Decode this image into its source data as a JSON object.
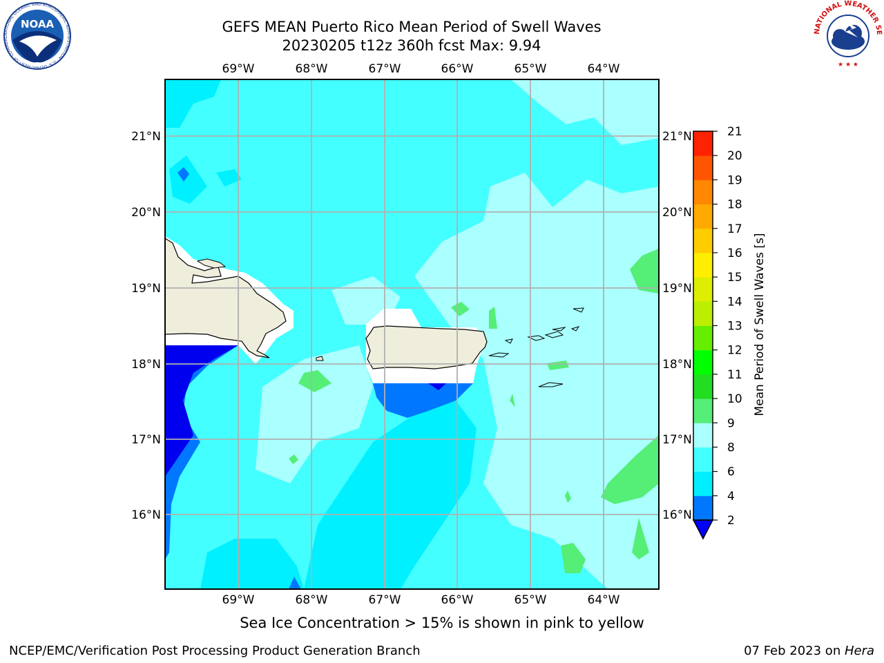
{
  "title_line1": "GEFS MEAN Puerto Rico Mean Period of Swell Waves",
  "title_line2": "20230205 t12z 360h fcst   Max: 9.94",
  "lon_labels": [
    "69°W",
    "68°W",
    "67°W",
    "66°W",
    "65°W",
    "64°W"
  ],
  "lat_labels": [
    "21°N",
    "20°N",
    "19°N",
    "18°N",
    "17°N",
    "16°N"
  ],
  "colorbar": {
    "label": "Mean Period of Swell Waves [s]",
    "ticks": [
      "2",
      "4",
      "6",
      "8",
      "9",
      "10",
      "11",
      "12",
      "13",
      "14",
      "15",
      "16",
      "17",
      "18",
      "19",
      "20",
      "21"
    ],
    "colors": [
      "#0000ff",
      "#0077ff",
      "#00eeff",
      "#44ffff",
      "#aaffff",
      "#55ee77",
      "#22dd22",
      "#00ff00",
      "#66ee00",
      "#bbee00",
      "#ddee00",
      "#ffee00",
      "#ffcc00",
      "#ffaa00",
      "#ff8800",
      "#ff5500",
      "#ff2200",
      "#ff0000"
    ]
  },
  "subtitle": "Sea Ice Concentration > 15% is shown in pink to yellow",
  "footer_left": "NCEP/EMC/Verification Post Processing Product Generation Branch",
  "footer_right_date": "07 Feb 2023 on ",
  "footer_right_machine": "Hera",
  "noaa_logo_text": "NOAA",
  "noaa_ring_text": "NATIONAL OCEANIC AND ATMOSPHERIC ADMINISTRATION · U.S. DEPARTMENT OF COMMERCE",
  "nws_ring_text": "NATIONAL WEATHER SERVICE"
}
